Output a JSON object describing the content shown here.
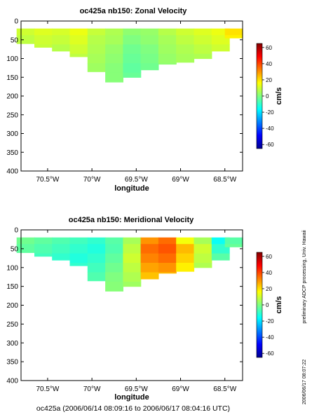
{
  "footer": "oc425a (2006/06/14 08:09:16 to 2006/06/17 08:04:16 UTC)",
  "side_text_1": "preliminary ADCP processing,  Univ. Hawaii",
  "side_text_2": "2006/06/17 08:07:22",
  "chart_data": [
    {
      "type": "heatmap",
      "title": "oc425a nb150: Zonal Velocity",
      "xlabel": "longitude",
      "ylabel": "",
      "xlim": [
        -70.8,
        -68.3
      ],
      "ylim": [
        400,
        0
      ],
      "xticks": [
        -70.5,
        -70.0,
        -69.5,
        -69.0,
        -68.5
      ],
      "xticklabels": [
        "70.5°W",
        "70°W",
        "69.5°W",
        "69°W",
        "68.5°W"
      ],
      "yticks": [
        0,
        50,
        100,
        150,
        200,
        250,
        300,
        350,
        400
      ],
      "colorbar": {
        "label": "cm/s",
        "range": [
          -65,
          65
        ],
        "ticks": [
          -60,
          -40,
          -20,
          0,
          20,
          40,
          60
        ]
      },
      "lon": [
        -70.75,
        -70.55,
        -70.35,
        -70.15,
        -69.95,
        -69.75,
        -69.55,
        -69.35,
        -69.15,
        -68.95,
        -68.75,
        -68.55,
        -68.4
      ],
      "bottom_depth": [
        60,
        70,
        80,
        95,
        135,
        165,
        150,
        130,
        115,
        110,
        100,
        80,
        45
      ],
      "depth": [
        25,
        50,
        75,
        100,
        125,
        150
      ],
      "values": [
        [
          10,
          12,
          11,
          14,
          9,
          6,
          2,
          3,
          7,
          10,
          12,
          14,
          20
        ],
        [
          8,
          10,
          9,
          12,
          7,
          5,
          0,
          2,
          5,
          8,
          10,
          12,
          18
        ],
        [
          7,
          9,
          7,
          10,
          6,
          3,
          -2,
          0,
          4,
          6,
          8,
          10,
          14
        ],
        [
          6,
          7,
          6,
          8,
          5,
          2,
          -3,
          -1,
          3,
          5,
          6,
          8,
          12
        ],
        [
          5,
          6,
          5,
          6,
          4,
          1,
          -4,
          -2,
          2,
          4,
          5,
          6,
          10
        ],
        [
          4,
          5,
          4,
          5,
          3,
          1,
          -3,
          -2,
          1,
          3,
          4,
          5,
          8
        ]
      ]
    },
    {
      "type": "heatmap",
      "title": "oc425a nb150: Meridional Velocity",
      "xlabel": "longitude",
      "ylabel": "",
      "xlim": [
        -70.8,
        -68.3
      ],
      "ylim": [
        400,
        0
      ],
      "xticks": [
        -70.5,
        -70.0,
        -69.5,
        -69.0,
        -68.5
      ],
      "xticklabels": [
        "70.5°W",
        "70°W",
        "69.5°W",
        "69°W",
        "68.5°W"
      ],
      "yticks": [
        0,
        50,
        100,
        150,
        200,
        250,
        300,
        350,
        400
      ],
      "colorbar": {
        "label": "cm/s",
        "range": [
          -65,
          65
        ],
        "ticks": [
          -60,
          -40,
          -20,
          0,
          20,
          40,
          60
        ]
      },
      "lon": [
        -70.75,
        -70.55,
        -70.35,
        -70.15,
        -69.95,
        -69.75,
        -69.55,
        -69.35,
        -69.15,
        -68.95,
        -68.75,
        -68.55,
        -68.4
      ],
      "bottom_depth": [
        60,
        70,
        80,
        95,
        135,
        165,
        150,
        130,
        115,
        110,
        100,
        80,
        45
      ],
      "depth": [
        25,
        50,
        75,
        100,
        125,
        150
      ],
      "values": [
        [
          -2,
          -4,
          -6,
          -8,
          -10,
          -5,
          5,
          30,
          35,
          15,
          5,
          -15,
          -5
        ],
        [
          -4,
          -6,
          -8,
          -10,
          -12,
          -6,
          8,
          35,
          38,
          25,
          10,
          -10,
          -3
        ],
        [
          -5,
          -8,
          -10,
          -12,
          -10,
          -4,
          10,
          32,
          35,
          22,
          8,
          -5,
          -2
        ],
        [
          -6,
          -8,
          -9,
          -10,
          -8,
          -2,
          8,
          28,
          30,
          18,
          6,
          -4,
          -2
        ],
        [
          -6,
          -7,
          -8,
          -8,
          -6,
          0,
          6,
          24,
          25,
          15,
          5,
          -3,
          -1
        ],
        [
          -5,
          -6,
          -6,
          -6,
          -4,
          1,
          4,
          20,
          20,
          12,
          4,
          -2,
          -1
        ]
      ]
    }
  ]
}
